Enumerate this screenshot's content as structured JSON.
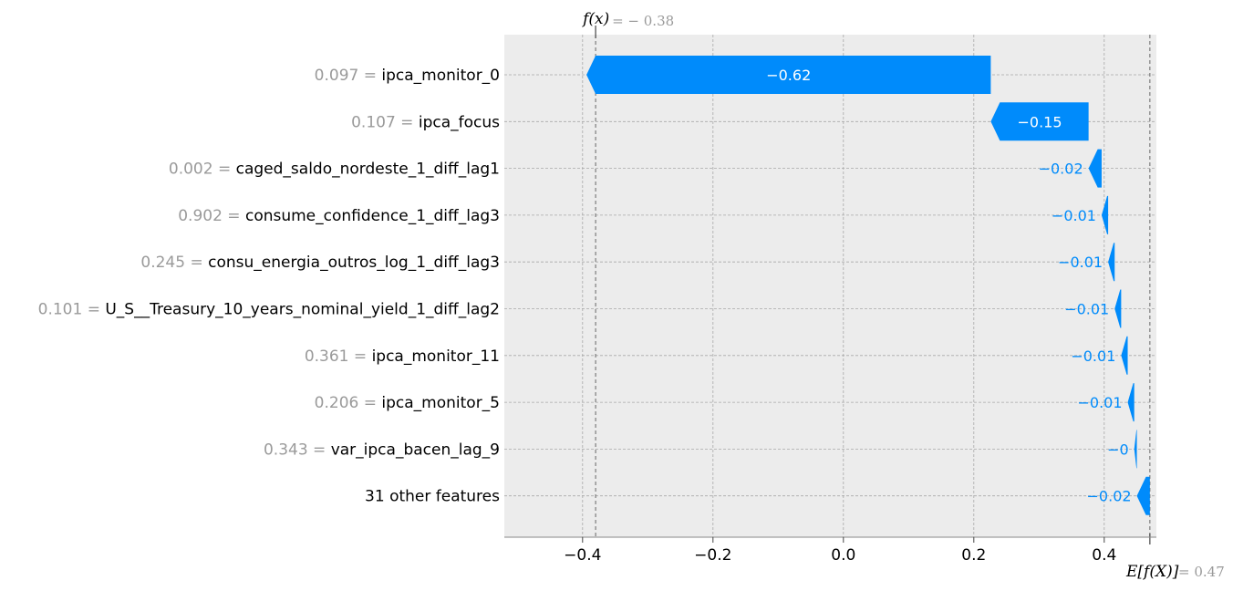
{
  "chart_data": {
    "type": "bar",
    "style": "waterfall",
    "base_value": 0.47,
    "base_value_label": "E[f(X)]",
    "base_value_text": "= 0.47",
    "output_value": -0.38,
    "output_value_label": "f(x)",
    "output_value_text": "= − 0.38",
    "xlim": [
      -0.52,
      0.48
    ],
    "xticks": [
      -0.4,
      -0.2,
      0.0,
      0.2,
      0.4
    ],
    "xtick_labels": [
      "−0.4",
      "−0.2",
      "0.0",
      "0.2",
      "0.4"
    ],
    "grid": true,
    "features": [
      {
        "value": "0.097",
        "name": "ipca_monitor_0",
        "contribution": -0.62,
        "label": "−0.62"
      },
      {
        "value": "0.107",
        "name": "ipca_focus",
        "contribution": -0.15,
        "label": "−0.15"
      },
      {
        "value": "0.002",
        "name": "caged_saldo_nordeste_1_diff_lag1",
        "contribution": -0.02,
        "label": "−0.02"
      },
      {
        "value": "0.902",
        "name": "consume_confidence_1_diff_lag3",
        "contribution": -0.01,
        "label": "−0.01"
      },
      {
        "value": "0.245",
        "name": "consu_energia_outros_log_1_diff_lag3",
        "contribution": -0.01,
        "label": "−0.01"
      },
      {
        "value": "0.101",
        "name": "U_S__Treasury_10_years_nominal_yield_1_diff_lag2",
        "contribution": -0.01,
        "label": "−0.01"
      },
      {
        "value": "0.361",
        "name": "ipca_monitor_11",
        "contribution": -0.01,
        "label": "−0.01"
      },
      {
        "value": "0.206",
        "name": "ipca_monitor_5",
        "contribution": -0.01,
        "label": "−0.01"
      },
      {
        "value": "0.343",
        "name": "var_ipca_bacen_lag_9",
        "contribution": -0.004,
        "label": "−0"
      },
      {
        "value": "",
        "name": "31 other features",
        "contribution": -0.02,
        "label": "−0.02"
      }
    ],
    "colors": {
      "negative": "#008bfb",
      "plot_background": "#ececec",
      "grid": "#a8a8a8",
      "feature_value_text": "#9a9a9a"
    }
  }
}
